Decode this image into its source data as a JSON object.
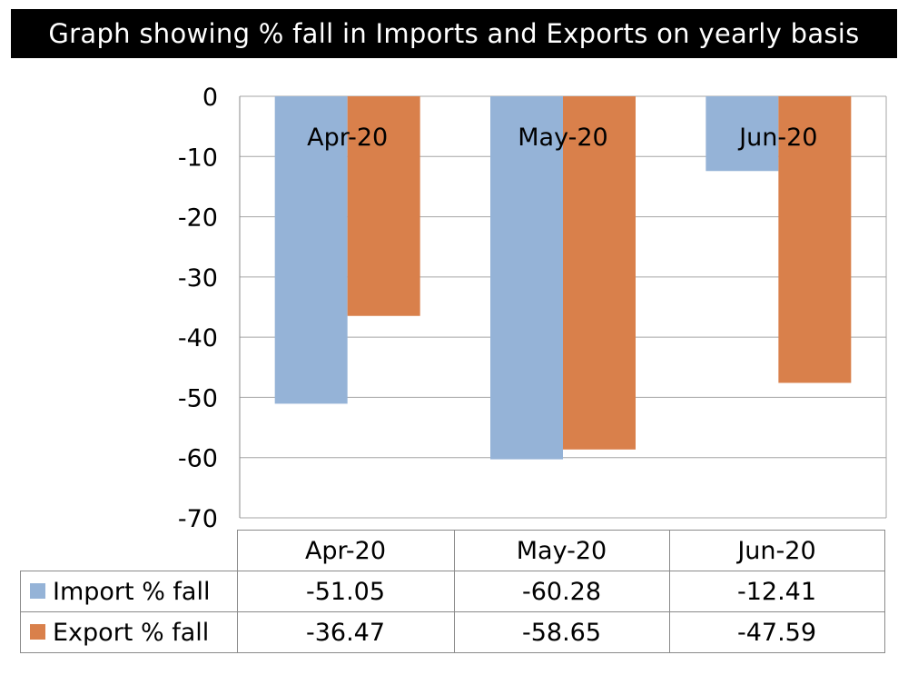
{
  "chart_data": {
    "type": "bar",
    "title": "Graph showing % fall in Imports and Exports on yearly basis",
    "categories": [
      "Apr-20",
      "May-20",
      "Jun-20"
    ],
    "series": [
      {
        "name": "Import % fall",
        "values": [
          -51.05,
          -60.28,
          -12.41
        ],
        "color": "#95b3d7"
      },
      {
        "name": "Export % fall",
        "values": [
          -36.47,
          -58.65,
          -47.59
        ],
        "color": "#d9804b"
      }
    ],
    "value_labels": [
      [
        "-51.05",
        "-60.28",
        "-12.41"
      ],
      [
        "-36.47",
        "-58.65",
        "-47.59"
      ]
    ],
    "yticks": [
      "0",
      "-10",
      "-20",
      "-30",
      "-40",
      "-50",
      "-60",
      "-70"
    ],
    "ylim": [
      -70,
      0
    ],
    "grid": true,
    "legend": "data-table"
  }
}
